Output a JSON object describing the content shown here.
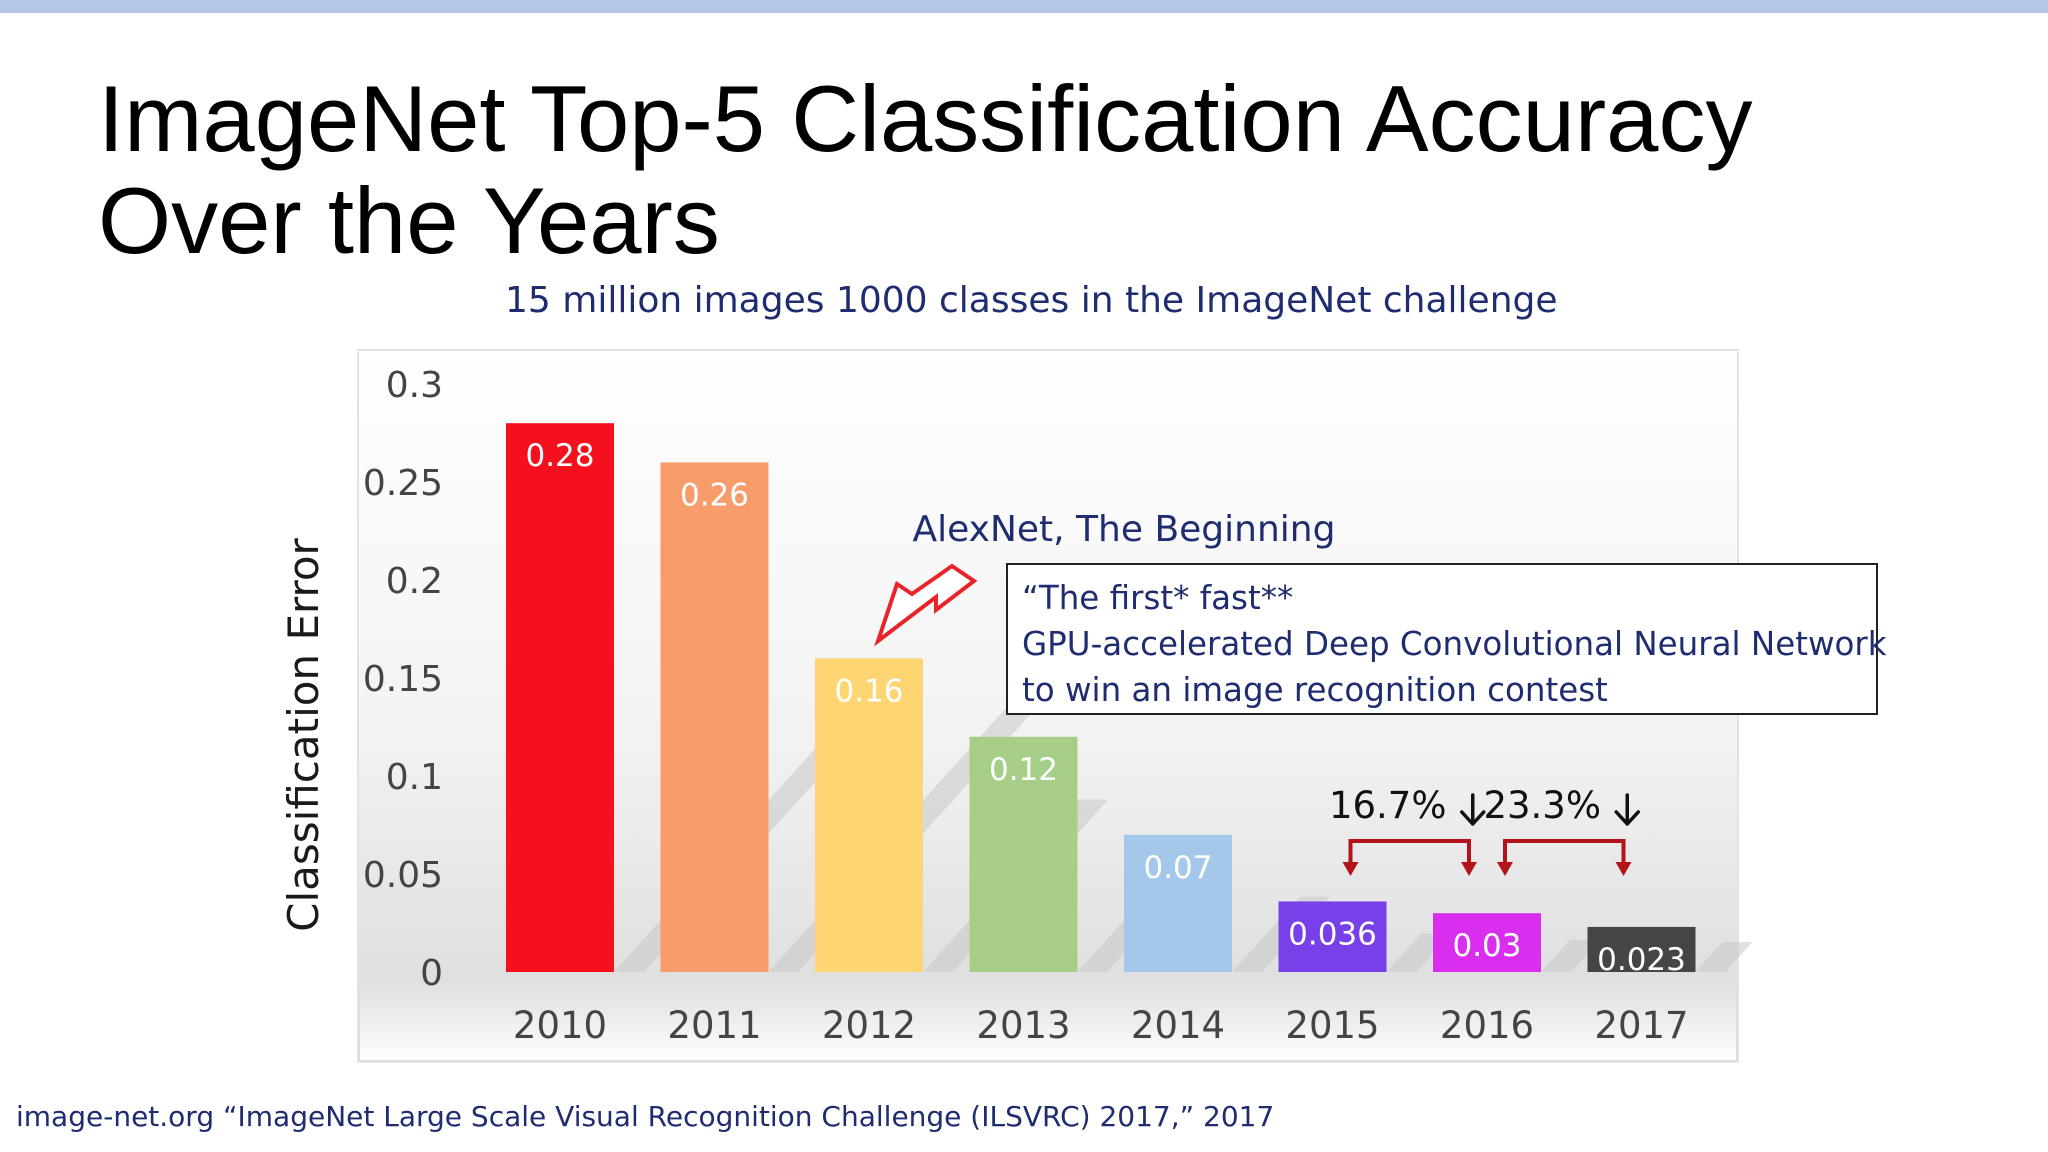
{
  "slide": {
    "title_line1": "ImageNet Top-5 Classification Accuracy",
    "title_line2": "Over the Years",
    "subtitle": "15 million images 1000 classes in the ImageNet challenge",
    "citation": "image-net.org “ImageNet Large Scale Visual Recognition Challenge (ILSVRC) 2017,” 2017"
  },
  "colors": {
    "top_bar": "#b4c7e7",
    "text_blue": "#1f2d70",
    "arrow_red": "#e8242a",
    "bracket_red": "#b3141b"
  },
  "annotation": {
    "label": "AlexNet, The Beginning",
    "box_lines": [
      "“The first* fast**",
      "GPU-accelerated Deep Convolutional Neural Network",
      "to win an image recognition contest"
    ]
  },
  "reductions": [
    {
      "label": "16.7%",
      "from": "2015",
      "to": "2016"
    },
    {
      "label": "23.3%",
      "from": "2016",
      "to": "2017"
    }
  ],
  "chart_data": {
    "type": "bar",
    "title": "",
    "xlabel": "",
    "ylabel": "Classification Error",
    "categories": [
      "2010",
      "2011",
      "2012",
      "2013",
      "2014",
      "2015",
      "2016",
      "2017"
    ],
    "values": [
      0.28,
      0.26,
      0.16,
      0.12,
      0.07,
      0.036,
      0.03,
      0.023
    ],
    "data_labels": [
      "0.28",
      "0.26",
      "0.16",
      "0.12",
      "0.07",
      "0.036",
      "0.03",
      "0.023"
    ],
    "bar_colors": [
      "#f5101e",
      "#f99c6c",
      "#fdd572",
      "#a6ce86",
      "#a4c8ea",
      "#7740e8",
      "#d92ef0",
      "#454545"
    ],
    "yticks": [
      0,
      0.05,
      0.1,
      0.15,
      0.2,
      0.25,
      0.3
    ],
    "ytick_labels": [
      "0",
      "0.05",
      "0.1",
      "0.15",
      "0.2",
      "0.25",
      "0.3"
    ],
    "ylim": [
      0,
      0.3
    ],
    "grid": false,
    "legend": "none"
  }
}
